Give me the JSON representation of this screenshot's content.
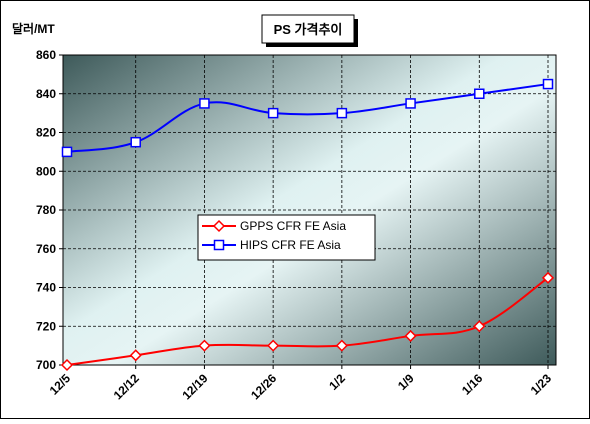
{
  "chart_data": {
    "type": "line",
    "title": "PS 가격추이",
    "ylabel": "달러/MT",
    "xlabel": "",
    "categories": [
      "12/5",
      "12/12",
      "12/19",
      "12/26",
      "1/2",
      "1/9",
      "1/16",
      "1/23"
    ],
    "ylim": [
      700,
      860
    ],
    "yticks": [
      "700",
      "720",
      "740",
      "760",
      "780",
      "800",
      "820",
      "840",
      "860"
    ],
    "grid": true,
    "legend_position": "center",
    "series": [
      {
        "name": "GPPS CFR FE Asia",
        "color": "#ff0000",
        "marker": "diamond",
        "values": [
          700,
          705,
          710,
          710,
          710,
          715,
          720,
          745
        ]
      },
      {
        "name": "HIPS CFR FE Asia",
        "color": "#0000ff",
        "marker": "square",
        "values": [
          810,
          815,
          835,
          830,
          830,
          835,
          840,
          845
        ]
      }
    ]
  }
}
